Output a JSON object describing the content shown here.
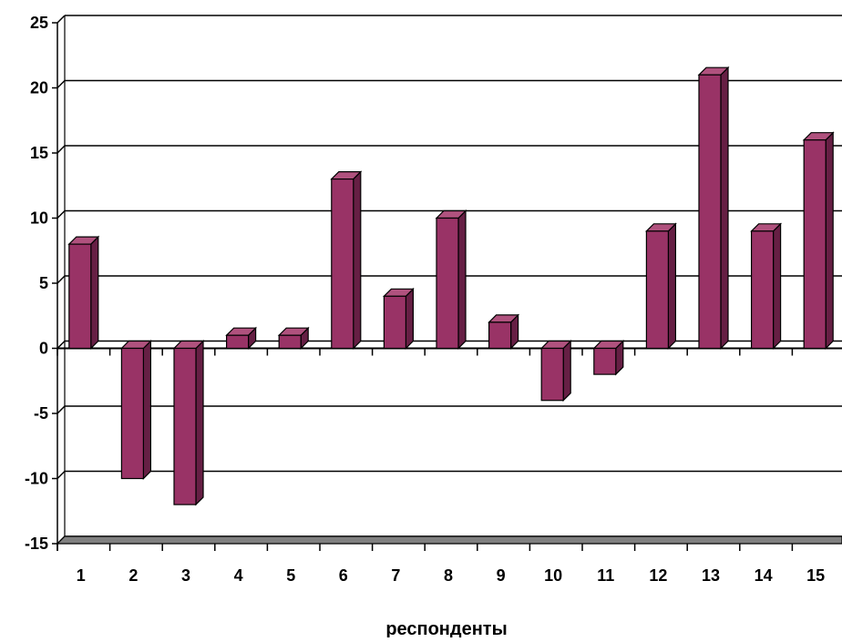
{
  "chart_data": {
    "type": "bar",
    "title": "",
    "xlabel": "респонденты",
    "ylabel": "",
    "categories": [
      "1",
      "2",
      "3",
      "4",
      "5",
      "6",
      "7",
      "8",
      "9",
      "10",
      "11",
      "12",
      "13",
      "14",
      "15"
    ],
    "values": [
      8,
      -10,
      -12,
      1,
      1,
      13,
      4,
      10,
      2,
      -4,
      -2,
      9,
      21,
      9,
      16
    ],
    "ylim": [
      -15,
      25
    ],
    "yticks": [
      -15,
      -10,
      -5,
      0,
      5,
      10,
      15,
      20,
      25
    ],
    "grid": true,
    "legend": "none",
    "style": "3d-column",
    "colors": {
      "bar_front": "#993366",
      "bar_top": "#B0527E",
      "bar_side": "#661F44",
      "outline": "#000000",
      "gridline": "#000000",
      "floor": "#808080"
    }
  }
}
